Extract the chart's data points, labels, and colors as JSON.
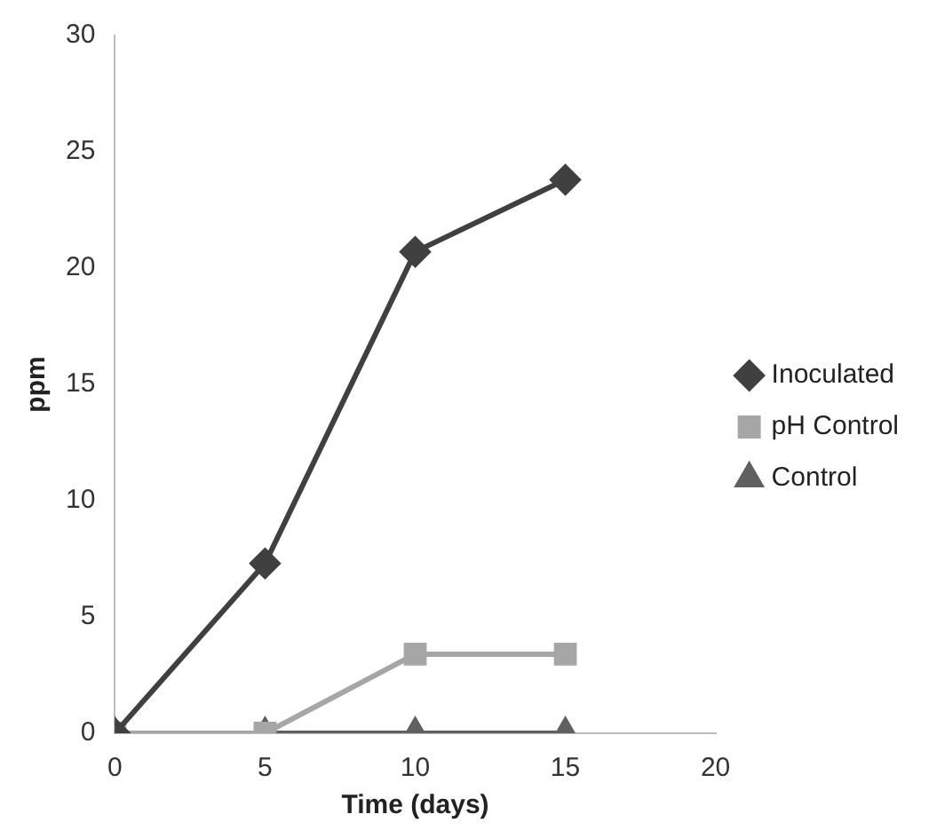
{
  "chart_data": {
    "type": "line",
    "xlabel": "Time (days)",
    "ylabel": "ppm",
    "xlim": [
      0,
      20
    ],
    "xticks": [
      0,
      5,
      10,
      15,
      20
    ],
    "ylim": [
      0,
      30
    ],
    "yticks": [
      0,
      5,
      10,
      15,
      20,
      25,
      30
    ],
    "grid": false,
    "legend": "right",
    "line_style": "solid",
    "series": [
      {
        "name": "Inoculated",
        "color": "#404040",
        "marker": "diamond",
        "x": [
          0,
          5,
          10,
          15
        ],
        "values": [
          0,
          7.3,
          20.7,
          23.8
        ]
      },
      {
        "name": "pH Control",
        "color": "#a6a6a6",
        "marker": "square",
        "x": [
          0,
          5,
          10,
          15
        ],
        "values": [
          0,
          0,
          3.4,
          3.4
        ]
      },
      {
        "name": "Control",
        "color": "#606060",
        "marker": "triangle",
        "x": [
          0,
          5,
          10,
          15
        ],
        "values": [
          0,
          0,
          0,
          0
        ]
      }
    ]
  }
}
